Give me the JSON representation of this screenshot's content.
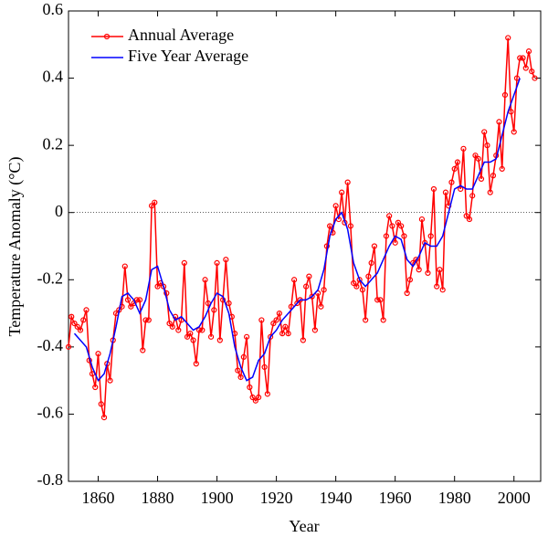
{
  "chart_data": {
    "type": "line",
    "xlabel": "Year",
    "ylabel": "Temperature Anomaly (°C)",
    "xlim": [
      1850,
      2009
    ],
    "ylim": [
      -0.8,
      0.6
    ],
    "xticks": [
      1860,
      1880,
      1900,
      1920,
      1940,
      1960,
      1980,
      2000
    ],
    "yticks": [
      -0.8,
      -0.6,
      -0.4,
      -0.2,
      0,
      0.2,
      0.4,
      0.6
    ],
    "legend": "upper left",
    "series": [
      {
        "name": "Annual Average",
        "color": "#ff0000",
        "marker": "circle",
        "x": [
          1850,
          1851,
          1852,
          1853,
          1854,
          1855,
          1856,
          1857,
          1858,
          1859,
          1860,
          1861,
          1862,
          1863,
          1864,
          1865,
          1866,
          1867,
          1868,
          1869,
          1870,
          1871,
          1872,
          1873,
          1874,
          1875,
          1876,
          1877,
          1878,
          1879,
          1880,
          1881,
          1882,
          1883,
          1884,
          1885,
          1886,
          1887,
          1888,
          1889,
          1890,
          1891,
          1892,
          1893,
          1894,
          1895,
          1896,
          1897,
          1898,
          1899,
          1900,
          1901,
          1902,
          1903,
          1904,
          1905,
          1906,
          1907,
          1908,
          1909,
          1910,
          1911,
          1912,
          1913,
          1914,
          1915,
          1916,
          1917,
          1918,
          1919,
          1920,
          1921,
          1922,
          1923,
          1924,
          1925,
          1926,
          1927,
          1928,
          1929,
          1930,
          1931,
          1932,
          1933,
          1934,
          1935,
          1936,
          1937,
          1938,
          1939,
          1940,
          1941,
          1942,
          1943,
          1944,
          1945,
          1946,
          1947,
          1948,
          1949,
          1950,
          1951,
          1952,
          1953,
          1954,
          1955,
          1956,
          1957,
          1958,
          1959,
          1960,
          1961,
          1962,
          1963,
          1964,
          1965,
          1966,
          1967,
          1968,
          1969,
          1970,
          1971,
          1972,
          1973,
          1974,
          1975,
          1976,
          1977,
          1978,
          1979,
          1980,
          1981,
          1982,
          1983,
          1984,
          1985,
          1986,
          1987,
          1988,
          1989,
          1990,
          1991,
          1992,
          1993,
          1994,
          1995,
          1996,
          1997,
          1998,
          1999,
          2000,
          2001,
          2002,
          2003,
          2004,
          2005,
          2006,
          2007
        ],
        "values": [
          -0.4,
          -0.31,
          -0.33,
          -0.34,
          -0.35,
          -0.32,
          -0.29,
          -0.44,
          -0.48,
          -0.52,
          -0.42,
          -0.57,
          -0.61,
          -0.45,
          -0.5,
          -0.38,
          -0.3,
          -0.29,
          -0.28,
          -0.16,
          -0.26,
          -0.28,
          -0.27,
          -0.26,
          -0.26,
          -0.41,
          -0.32,
          -0.32,
          0.02,
          0.03,
          -0.22,
          -0.21,
          -0.22,
          -0.24,
          -0.33,
          -0.34,
          -0.31,
          -0.35,
          -0.32,
          -0.15,
          -0.37,
          -0.36,
          -0.38,
          -0.45,
          -0.35,
          -0.35,
          -0.2,
          -0.27,
          -0.37,
          -0.29,
          -0.15,
          -0.38,
          -0.26,
          -0.14,
          -0.27,
          -0.31,
          -0.36,
          -0.47,
          -0.49,
          -0.43,
          -0.37,
          -0.52,
          -0.55,
          -0.56,
          -0.55,
          -0.32,
          -0.46,
          -0.54,
          -0.37,
          -0.33,
          -0.32,
          -0.3,
          -0.36,
          -0.34,
          -0.36,
          -0.28,
          -0.2,
          -0.27,
          -0.26,
          -0.38,
          -0.22,
          -0.19,
          -0.25,
          -0.35,
          -0.24,
          -0.28,
          -0.23,
          -0.1,
          -0.04,
          -0.06,
          0.02,
          -0.02,
          0.06,
          -0.03,
          0.09,
          -0.04,
          -0.21,
          -0.22,
          -0.2,
          -0.23,
          -0.32,
          -0.19,
          -0.15,
          -0.1,
          -0.26,
          -0.26,
          -0.32,
          -0.07,
          -0.01,
          -0.04,
          -0.09,
          -0.03,
          -0.04,
          -0.07,
          -0.24,
          -0.2,
          -0.15,
          -0.14,
          -0.17,
          -0.02,
          -0.09,
          -0.18,
          -0.07,
          0.07,
          -0.22,
          -0.17,
          -0.23,
          0.06,
          0.02,
          0.09,
          0.13,
          0.15,
          0.07,
          0.19,
          -0.01,
          -0.02,
          0.05,
          0.17,
          0.16,
          0.1,
          0.24,
          0.2,
          0.06,
          0.11,
          0.17,
          0.27,
          0.13,
          0.35,
          0.52,
          0.3,
          0.24,
          0.4,
          0.46,
          0.46,
          0.43,
          0.48,
          0.42,
          0.4
        ]
      },
      {
        "name": "Five Year Average",
        "color": "#0000ff",
        "x": [
          1852,
          1854,
          1856,
          1858,
          1860,
          1862,
          1864,
          1866,
          1868,
          1870,
          1872,
          1874,
          1876,
          1878,
          1880,
          1882,
          1884,
          1886,
          1888,
          1890,
          1892,
          1894,
          1896,
          1898,
          1900,
          1902,
          1904,
          1906,
          1908,
          1910,
          1912,
          1914,
          1916,
          1918,
          1920,
          1922,
          1924,
          1926,
          1928,
          1930,
          1932,
          1934,
          1936,
          1938,
          1940,
          1942,
          1944,
          1946,
          1948,
          1950,
          1952,
          1954,
          1956,
          1958,
          1960,
          1962,
          1964,
          1966,
          1968,
          1970,
          1972,
          1974,
          1976,
          1978,
          1980,
          1982,
          1984,
          1986,
          1988,
          1990,
          1992,
          1994,
          1996,
          1998,
          2000,
          2002
        ],
        "values": [
          -0.36,
          -0.38,
          -0.4,
          -0.46,
          -0.5,
          -0.48,
          -0.42,
          -0.34,
          -0.25,
          -0.24,
          -0.26,
          -0.3,
          -0.26,
          -0.17,
          -0.16,
          -0.22,
          -0.29,
          -0.32,
          -0.31,
          -0.33,
          -0.35,
          -0.34,
          -0.31,
          -0.27,
          -0.24,
          -0.25,
          -0.3,
          -0.4,
          -0.46,
          -0.5,
          -0.49,
          -0.44,
          -0.42,
          -0.37,
          -0.35,
          -0.32,
          -0.3,
          -0.28,
          -0.26,
          -0.26,
          -0.25,
          -0.23,
          -0.17,
          -0.07,
          -0.02,
          0.0,
          -0.05,
          -0.15,
          -0.2,
          -0.22,
          -0.2,
          -0.18,
          -0.14,
          -0.1,
          -0.07,
          -0.08,
          -0.14,
          -0.16,
          -0.13,
          -0.09,
          -0.1,
          -0.1,
          -0.07,
          0.0,
          0.07,
          0.08,
          0.07,
          0.07,
          0.11,
          0.15,
          0.15,
          0.16,
          0.23,
          0.3,
          0.35,
          0.4
        ]
      }
    ]
  }
}
